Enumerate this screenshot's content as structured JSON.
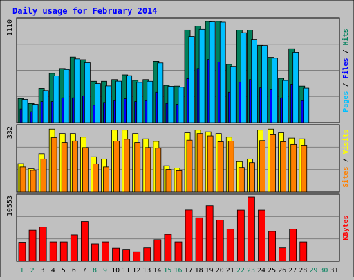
{
  "chart_data": {
    "type": "bar",
    "title": "Daily usage for February 2014",
    "categories": [
      "1",
      "2",
      "3",
      "4",
      "5",
      "6",
      "7",
      "8",
      "9",
      "10",
      "11",
      "12",
      "13",
      "14",
      "15",
      "16",
      "17",
      "18",
      "19",
      "20",
      "21",
      "22",
      "23",
      "24",
      "25",
      "26",
      "27",
      "28",
      "29",
      "30",
      "31"
    ],
    "weekend_days": [
      "1",
      "2",
      "8",
      "9",
      "15",
      "16",
      "22",
      "23",
      "29",
      "30"
    ],
    "panels": [
      {
        "key": "hits_files_pages",
        "ymax": 1110,
        "ymax_label": "1110",
        "right_labels": [
          {
            "text": "Pages",
            "color": "#00c0ff"
          },
          {
            "text": " / ",
            "color": "#000000"
          },
          {
            "text": "Files",
            "color": "#0000ff"
          },
          {
            "text": " / ",
            "color": "#000000"
          },
          {
            "text": "Hits",
            "color": "#00805c"
          }
        ],
        "series": [
          {
            "name": "Hits",
            "color": "#00805c",
            "values": [
              262,
              209,
              374,
              537,
              590,
              716,
              687,
              451,
              451,
              470,
              521,
              461,
              470,
              669,
              407,
              399,
              1009,
              1054,
              1103,
              1104,
              635,
              1008,
              1008,
              843,
              713,
              483,
              806,
              399,
              0,
              0,
              0
            ]
          },
          {
            "name": "Files",
            "color": "#0000ff",
            "values": [
              150,
              120,
              230,
              230,
              270,
              270,
              291,
              190,
              220,
              240,
              260,
              230,
              240,
              330,
              210,
              200,
              480,
              590,
              690,
              660,
              330,
              440,
              470,
              380,
              360,
              270,
              420,
              240,
              0,
              0,
              0
            ]
          },
          {
            "name": "Pages",
            "color": "#00c0ff",
            "values": [
              253,
              200,
              349,
              510,
              579,
              696,
              653,
              426,
              401,
              452,
              512,
              439,
              451,
              651,
              397,
              387,
              940,
              1017,
              1098,
              1095,
              614,
              980,
              909,
              841,
              704,
              460,
              767,
              377,
              0,
              0,
              0
            ]
          }
        ]
      },
      {
        "key": "visits_sites",
        "ymax": 332,
        "ymax_label": "332",
        "right_labels": [
          {
            "text": "Sites",
            "color": "#ff8000"
          },
          {
            "text": " / ",
            "color": "#000000"
          },
          {
            "text": "Visits",
            "color": "#ffff00"
          }
        ],
        "series": [
          {
            "name": "Visits",
            "color": "#ffff00",
            "values": [
              146,
              119,
              197,
              324,
              301,
              301,
              283,
              181,
              170,
              319,
              319,
              301,
              274,
              261,
              135,
              123,
              305,
              319,
              310,
              301,
              283,
              156,
              170,
              319,
              324,
              305,
              278,
              274,
              0,
              0,
              0
            ]
          },
          {
            "name": "Sites",
            "color": "#ff8000",
            "values": [
              129,
              111,
              170,
              280,
              255,
              263,
              229,
              145,
              129,
              262,
              272,
              255,
              229,
              226,
              116,
              109,
              267,
              301,
              289,
              259,
              262,
              126,
              151,
              265,
              295,
              259,
              245,
              241,
              0,
              0,
              0
            ]
          }
        ]
      },
      {
        "key": "kbytes",
        "ymax": 10553,
        "ymax_label": "10553",
        "right_labels": [
          {
            "text": "KBytes",
            "color": "#ff0000"
          }
        ],
        "series": [
          {
            "name": "KBytes",
            "color": "#ff0000",
            "values": [
              3120,
              5090,
              5600,
              3170,
              3170,
              4320,
              6520,
              2840,
              3170,
              2140,
              1970,
              1560,
              2190,
              3530,
              4410,
              3170,
              8410,
              7120,
              9110,
              6740,
              5260,
              8390,
              10553,
              8390,
              4890,
              2190,
              5260,
              3170,
              0,
              0,
              0
            ]
          }
        ]
      }
    ],
    "colors": {
      "background": "#c0c0c0",
      "plot_background": "#c0c0c0",
      "title": "#0000ff",
      "weekday_label": "#000000",
      "weekend_label": "#00805c",
      "grid": "#808080"
    }
  }
}
